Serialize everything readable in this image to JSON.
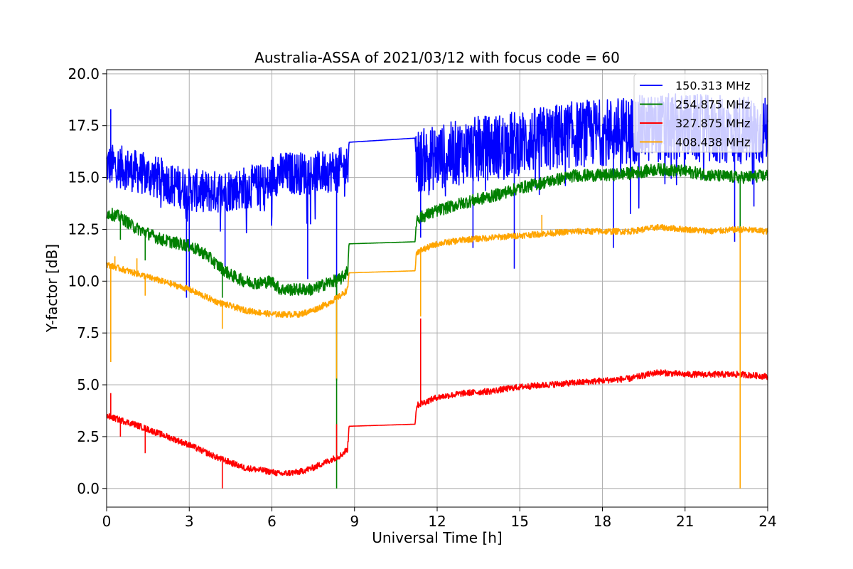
{
  "chart_data": {
    "type": "line",
    "title": "Australia-ASSA of 2021/03/12 with focus code = 60",
    "xlabel": "Universal Time [h]",
    "ylabel": "Y-factor [dB]",
    "xlim": [
      0,
      24
    ],
    "ylim": [
      -0.9,
      20.2
    ],
    "x_ticks": [
      0,
      3,
      6,
      9,
      12,
      15,
      18,
      21,
      24
    ],
    "x_tick_labels": [
      "0",
      "3",
      "6",
      "9",
      "12",
      "15",
      "18",
      "21",
      "24"
    ],
    "y_ticks": [
      0.0,
      2.5,
      5.0,
      7.5,
      10.0,
      12.5,
      15.0,
      17.5,
      20.0
    ],
    "y_tick_labels": [
      "0.0",
      "2.5",
      "5.0",
      "7.5",
      "10.0",
      "12.5",
      "15.0",
      "17.5",
      "20.0"
    ],
    "grid": true,
    "legend_position": "top-right",
    "series": [
      {
        "name": "150.313 MHz",
        "color": "#0000ff",
        "points": [
          [
            0,
            15.3
          ],
          [
            0.5,
            15.2
          ],
          [
            1,
            15.0
          ],
          [
            1.5,
            14.8
          ],
          [
            2,
            14.6
          ],
          [
            2.5,
            14.3
          ],
          [
            3,
            14.1
          ],
          [
            3.5,
            14.0
          ],
          [
            4,
            14.0
          ],
          [
            4.5,
            14.1
          ],
          [
            5,
            14.2
          ],
          [
            5.5,
            14.3
          ],
          [
            5.9,
            14.3
          ],
          [
            6.0,
            14.8
          ],
          [
            6.5,
            14.9
          ],
          [
            7,
            14.9
          ],
          [
            7.5,
            14.9
          ],
          [
            8,
            15.0
          ],
          [
            8.5,
            15.1
          ],
          [
            8.75,
            15.2
          ],
          [
            8.8,
            16.7
          ],
          [
            11.2,
            16.9
          ],
          [
            11.25,
            15.3
          ],
          [
            12,
            15.5
          ],
          [
            13,
            15.8
          ],
          [
            14,
            16.0
          ],
          [
            15,
            16.2
          ],
          [
            16,
            16.4
          ],
          [
            17,
            16.6
          ],
          [
            18,
            16.7
          ],
          [
            19,
            16.8
          ],
          [
            20,
            16.9
          ],
          [
            21,
            16.9
          ],
          [
            22,
            16.8
          ],
          [
            23,
            16.8
          ],
          [
            24,
            16.7
          ]
        ],
        "noise_amplitude": [
          [
            0,
            1.6
          ],
          [
            8.75,
            1.6
          ],
          [
            11.25,
            2.4
          ],
          [
            24,
            2.6
          ]
        ],
        "spikes": [
          [
            0.15,
            18.3
          ],
          [
            2.9,
            9.2
          ],
          [
            3.0,
            9.5
          ],
          [
            4.3,
            10.7
          ],
          [
            7.3,
            10.1
          ],
          [
            8.35,
            9.3
          ],
          [
            11.4,
            12.1
          ],
          [
            13.3,
            11.6
          ],
          [
            14.8,
            10.6
          ],
          [
            18.4,
            11.6
          ],
          [
            22.8,
            11.9
          ],
          [
            23.5,
            13.6
          ]
        ]
      },
      {
        "name": "254.875 MHz",
        "color": "#008000",
        "points": [
          [
            0,
            13.3
          ],
          [
            0.5,
            13.1
          ],
          [
            1,
            12.6
          ],
          [
            2,
            12.0
          ],
          [
            3,
            11.7
          ],
          [
            3.6,
            11.3
          ],
          [
            4,
            10.8
          ],
          [
            4.5,
            10.3
          ],
          [
            5,
            10.0
          ],
          [
            5.5,
            9.9
          ],
          [
            6,
            10.0
          ],
          [
            6.3,
            9.6
          ],
          [
            7,
            9.6
          ],
          [
            7.5,
            9.6
          ],
          [
            8,
            9.9
          ],
          [
            8.5,
            10.1
          ],
          [
            8.75,
            10.5
          ],
          [
            8.8,
            11.8
          ],
          [
            11.2,
            11.9
          ],
          [
            11.25,
            13.0
          ],
          [
            12,
            13.4
          ],
          [
            13,
            13.8
          ],
          [
            14,
            14.1
          ],
          [
            15,
            14.5
          ],
          [
            16,
            14.8
          ],
          [
            17,
            15.1
          ],
          [
            18,
            15.1
          ],
          [
            19,
            15.2
          ],
          [
            20,
            15.4
          ],
          [
            21,
            15.3
          ],
          [
            22,
            15.1
          ],
          [
            23,
            15.0
          ],
          [
            24,
            15.1
          ]
        ],
        "noise_amplitude": [
          [
            0,
            0.3
          ],
          [
            24,
            0.3
          ]
        ],
        "spikes": [
          [
            0.5,
            12.0
          ],
          [
            1.4,
            11.0
          ],
          [
            4.2,
            9.2
          ],
          [
            8.35,
            0.0
          ],
          [
            8.35,
            5.2
          ],
          [
            23.0,
            12.1
          ]
        ]
      },
      {
        "name": "327.875 MHz",
        "color": "#ff0000",
        "points": [
          [
            0,
            3.5
          ],
          [
            1,
            3.1
          ],
          [
            2,
            2.6
          ],
          [
            3,
            2.1
          ],
          [
            4,
            1.5
          ],
          [
            5,
            1.0
          ],
          [
            6,
            0.8
          ],
          [
            6.3,
            0.7
          ],
          [
            7,
            0.8
          ],
          [
            7.5,
            1.0
          ],
          [
            8,
            1.3
          ],
          [
            8.5,
            1.6
          ],
          [
            8.75,
            1.9
          ],
          [
            8.8,
            3.0
          ],
          [
            11.2,
            3.1
          ],
          [
            11.25,
            4.0
          ],
          [
            12,
            4.4
          ],
          [
            13,
            4.6
          ],
          [
            14,
            4.7
          ],
          [
            15,
            4.9
          ],
          [
            16,
            5.0
          ],
          [
            17,
            5.1
          ],
          [
            18,
            5.2
          ],
          [
            19,
            5.3
          ],
          [
            20,
            5.6
          ],
          [
            21,
            5.5
          ],
          [
            22,
            5.5
          ],
          [
            23,
            5.5
          ],
          [
            24,
            5.4
          ]
        ],
        "noise_amplitude": [
          [
            0,
            0.15
          ],
          [
            24,
            0.15
          ]
        ],
        "spikes": [
          [
            0.15,
            4.6
          ],
          [
            0.5,
            2.5
          ],
          [
            1.4,
            1.7
          ],
          [
            4.2,
            0.0
          ],
          [
            8.35,
            3.1
          ],
          [
            11.4,
            8.2
          ]
        ]
      },
      {
        "name": "408.438 MHz",
        "color": "#ffa500",
        "points": [
          [
            0,
            10.8
          ],
          [
            1,
            10.4
          ],
          [
            2,
            10.0
          ],
          [
            3,
            9.6
          ],
          [
            4,
            9.0
          ],
          [
            5,
            8.6
          ],
          [
            6,
            8.4
          ],
          [
            7,
            8.4
          ],
          [
            7.5,
            8.6
          ],
          [
            8,
            8.9
          ],
          [
            8.5,
            9.3
          ],
          [
            8.75,
            9.6
          ],
          [
            8.8,
            10.4
          ],
          [
            11.2,
            10.5
          ],
          [
            11.25,
            11.4
          ],
          [
            12,
            11.8
          ],
          [
            13,
            12.0
          ],
          [
            14,
            12.1
          ],
          [
            15,
            12.2
          ],
          [
            16,
            12.3
          ],
          [
            17,
            12.4
          ],
          [
            18,
            12.4
          ],
          [
            19,
            12.4
          ],
          [
            20,
            12.6
          ],
          [
            21,
            12.5
          ],
          [
            22,
            12.4
          ],
          [
            23,
            12.5
          ],
          [
            24,
            12.4
          ]
        ],
        "noise_amplitude": [
          [
            0,
            0.15
          ],
          [
            24,
            0.15
          ]
        ],
        "spikes": [
          [
            0.15,
            6.1
          ],
          [
            0.3,
            11.2
          ],
          [
            1.4,
            9.3
          ],
          [
            1.1,
            11.1
          ],
          [
            4.2,
            7.7
          ],
          [
            8.35,
            5.3
          ],
          [
            11.4,
            8.3
          ],
          [
            15.8,
            13.2
          ],
          [
            23.0,
            0.0
          ]
        ]
      }
    ]
  }
}
